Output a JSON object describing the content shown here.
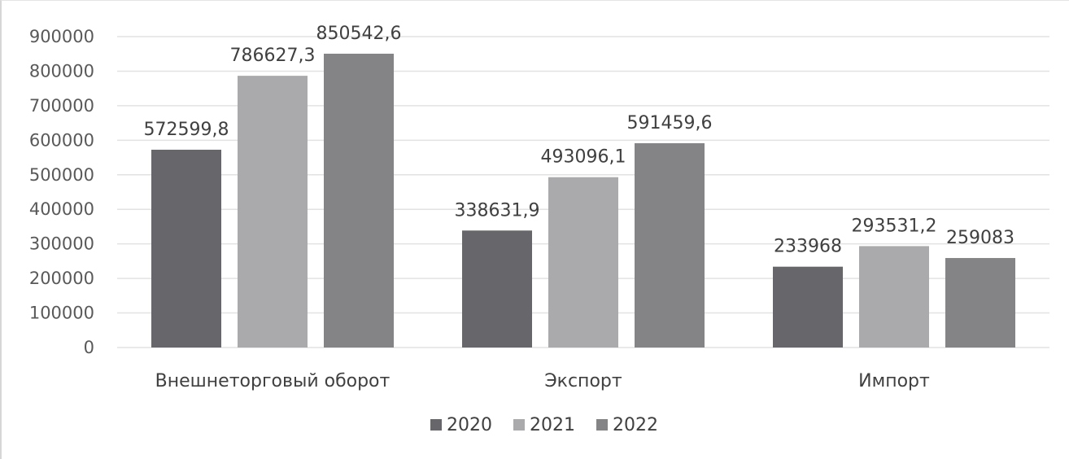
{
  "chart_data": {
    "type": "bar",
    "title": "",
    "xlabel": "",
    "ylabel": "",
    "ylim": [
      0,
      900000
    ],
    "yticks": [
      "0",
      "100000",
      "200000",
      "300000",
      "400000",
      "500000",
      "600000",
      "700000",
      "800000",
      "900000"
    ],
    "grid": true,
    "legend_position": "bottom",
    "categories": [
      "Внешнеторговый оборот",
      "Экспорт",
      "Импорт"
    ],
    "series": [
      {
        "name": "2020",
        "color": "#67676b",
        "values": [
          572599.8,
          338631.9,
          233968
        ],
        "labels": [
          "572599,8",
          "338631,9",
          "233968"
        ]
      },
      {
        "name": "2021",
        "color": "#aaaaac",
        "values": [
          786627.3,
          493096.1,
          293531.2
        ],
        "labels": [
          "786627,3",
          "493096,1",
          "293531,2"
        ]
      },
      {
        "name": "2022",
        "color": "#848486",
        "values": [
          850542.6,
          591459.6,
          259083
        ],
        "labels": [
          "850542,6",
          "591459,6",
          "259083"
        ]
      }
    ]
  }
}
